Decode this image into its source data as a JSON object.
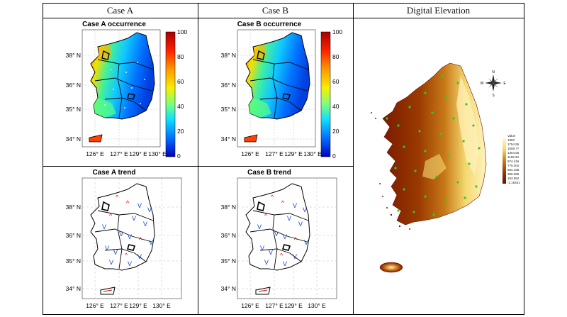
{
  "columns": [
    "Case A",
    "Case B",
    "Digital Elevation"
  ],
  "panels": {
    "a_occurrence": {
      "title": "Case A occurrence"
    },
    "b_occurrence": {
      "title": "Case B occurrence"
    },
    "a_trend": {
      "title": "Case A trend"
    },
    "b_trend": {
      "title": "Case B trend"
    }
  },
  "axes": {
    "lat_ticks": [
      "38° N",
      "36° N",
      "35° N",
      "34° N"
    ],
    "lon_ticks": [
      "126° E",
      "127° E",
      "129° E",
      "130° E"
    ]
  },
  "colorbar": {
    "ticks": [
      "100",
      "80",
      "60",
      "40",
      "20",
      "0"
    ],
    "colors": [
      "#a50000",
      "#ff2000",
      "#ff9a00",
      "#f8f000",
      "#7cff7c",
      "#10e0ff",
      "#0070ff",
      "#0000c0"
    ]
  },
  "elevation_legend": {
    "title": "Value",
    "values": [
      "1950",
      "1754.55",
      "1559.77",
      "1364.55",
      "1169.33",
      "974.416",
      "779.302",
      "584.188",
      "389.069",
      "193.952",
      "-1.16431"
    ]
  },
  "compass": {
    "n": "N",
    "s": "S",
    "e": "E",
    "w": "W"
  },
  "trend_markers": {
    "up": "^",
    "down": "V"
  }
}
